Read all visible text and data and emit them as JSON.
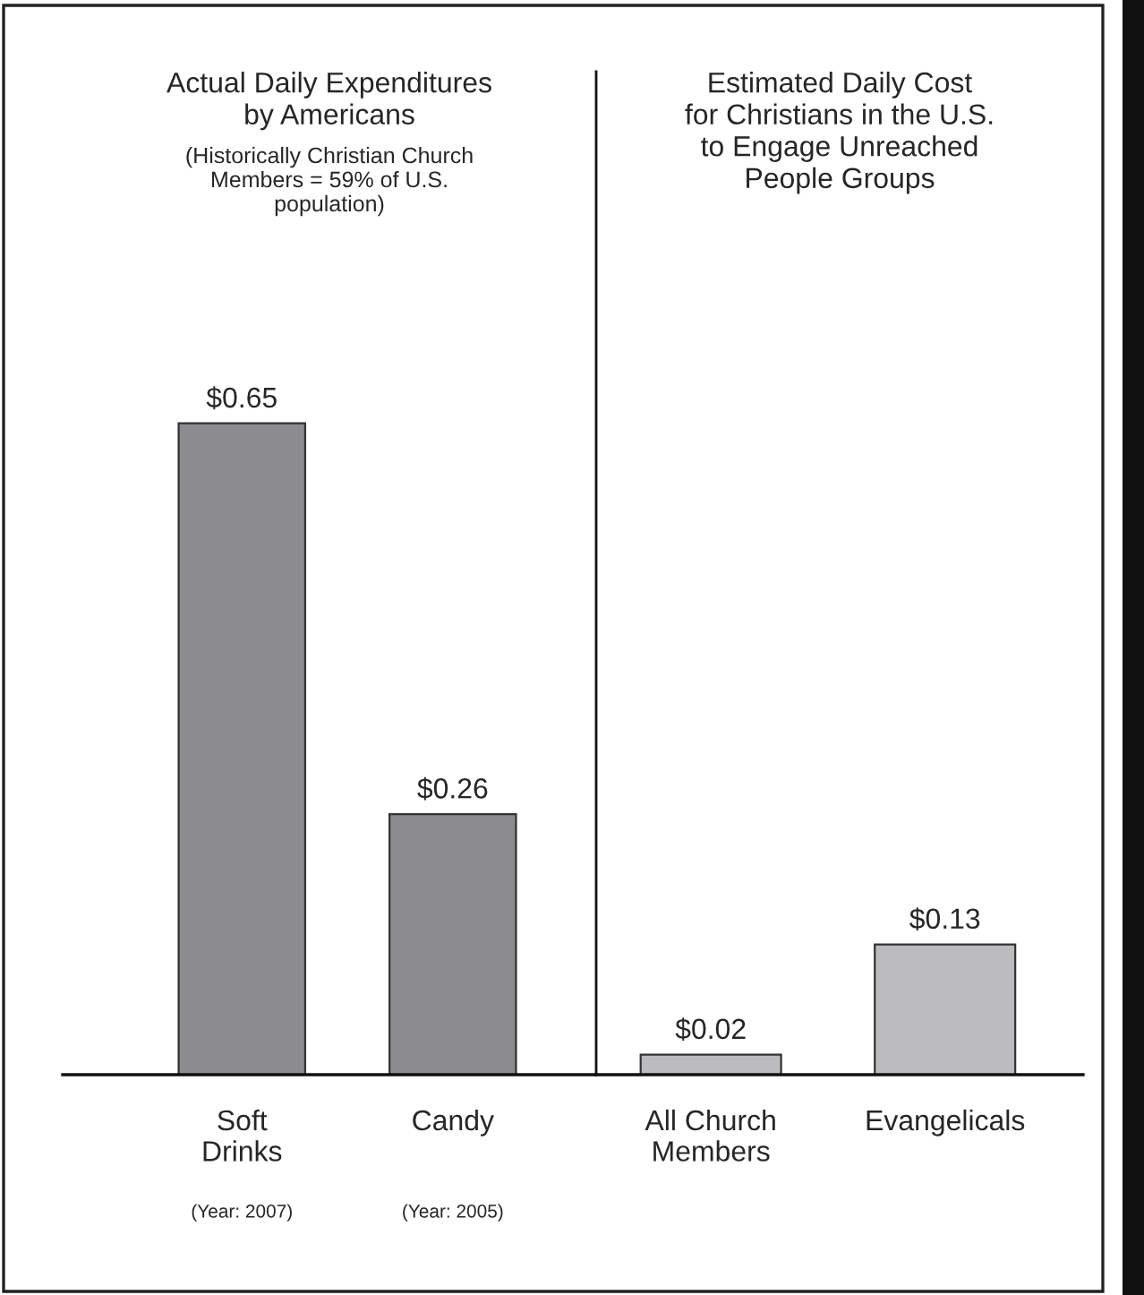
{
  "chart_data": [
    {
      "type": "bar",
      "title": "Actual Daily Expenditures\nby Americans",
      "subtitle": "(Historically Christian Church\nMembers = 59% of U.S.\npopulation)",
      "categories": [
        "Soft Drinks",
        "Candy"
      ],
      "values": [
        0.65,
        0.26
      ],
      "value_labels": [
        "$0.65",
        "$0.26"
      ],
      "color": "#8c8c8f",
      "annotations": [
        "(Year: 2007)",
        "(Year: 2005)"
      ]
    },
    {
      "type": "bar",
      "title": "Estimated Daily Cost\nfor Christians in the U.S.\nto Engage Unreached\nPeople Groups",
      "categories": [
        "All Church Members",
        "Evangelicals"
      ],
      "values": [
        0.02,
        0.13
      ],
      "value_labels": [
        "$0.02",
        "$0.13"
      ],
      "color": "#bcbcbe"
    }
  ]
}
